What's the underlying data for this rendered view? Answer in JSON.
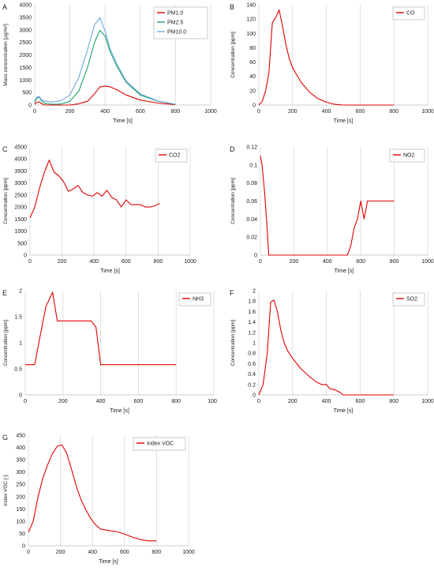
{
  "chart_data": [
    {
      "panel_label": "A",
      "type": "line",
      "xlabel": "Time [s]",
      "ylabel": "Mass concentration [µg/m³]",
      "xlim": [
        0,
        1000
      ],
      "ylim": [
        0,
        4000
      ],
      "xticks": [
        0,
        200,
        400,
        600,
        800,
        1000
      ],
      "yticks": [
        0,
        500,
        1000,
        1500,
        2000,
        2500,
        3000,
        3500,
        4000
      ],
      "grid": "vertical",
      "legend": "top-right",
      "series": [
        {
          "name": "PM1.0",
          "color": "#e30000",
          "x": [
            0,
            10,
            25,
            40,
            60,
            100,
            150,
            200,
            250,
            300,
            340,
            370,
            400,
            430,
            470,
            520,
            600,
            700,
            800
          ],
          "y": [
            30,
            100,
            130,
            50,
            0,
            0,
            0,
            0,
            50,
            150,
            450,
            720,
            760,
            720,
            600,
            400,
            200,
            80,
            20
          ]
        },
        {
          "name": "PM2.5",
          "color": "#1aa36a",
          "x": [
            0,
            10,
            25,
            40,
            60,
            100,
            150,
            200,
            250,
            300,
            340,
            370,
            400,
            430,
            470,
            520,
            600,
            700,
            800
          ],
          "y": [
            100,
            250,
            320,
            150,
            60,
            30,
            40,
            150,
            550,
            1500,
            2500,
            2980,
            2750,
            2100,
            1500,
            900,
            400,
            150,
            30
          ]
        },
        {
          "name": "PM10.0",
          "color": "#6fa8dc",
          "x": [
            0,
            10,
            25,
            40,
            60,
            100,
            150,
            200,
            250,
            300,
            340,
            370,
            400,
            430,
            470,
            520,
            600,
            700,
            800
          ],
          "y": [
            150,
            300,
            350,
            200,
            150,
            120,
            180,
            400,
            1100,
            2200,
            3200,
            3480,
            2950,
            2200,
            1600,
            950,
            450,
            160,
            30
          ]
        }
      ]
    },
    {
      "panel_label": "B",
      "type": "line",
      "xlabel": "Time [s]",
      "ylabel": "Concentration [ppm]",
      "xlim": [
        0,
        1000
      ],
      "ylim": [
        0,
        140
      ],
      "xticks": [
        0,
        200,
        400,
        600,
        800,
        1000
      ],
      "yticks": [
        0,
        20,
        40,
        60,
        80,
        100,
        120,
        140
      ],
      "grid": "vertical",
      "legend": "top-right",
      "series": [
        {
          "name": "CO",
          "color": "#e30000",
          "x": [
            0,
            20,
            40,
            60,
            80,
            100,
            120,
            140,
            160,
            180,
            200,
            250,
            300,
            350,
            400,
            450,
            500,
            600,
            700,
            800
          ],
          "y": [
            0,
            5,
            20,
            45,
            115,
            122,
            133,
            110,
            85,
            65,
            52,
            32,
            18,
            9,
            4,
            1,
            0,
            0,
            0,
            0
          ]
        }
      ]
    },
    {
      "panel_label": "C",
      "type": "line",
      "xlabel": "Time [s]",
      "ylabel": "Concentration [ppm]",
      "xlim": [
        0,
        1000
      ],
      "ylim": [
        0,
        4500
      ],
      "xticks": [
        0,
        200,
        400,
        600,
        800,
        1000
      ],
      "yticks": [
        0,
        500,
        1000,
        1500,
        2000,
        2500,
        3000,
        3500,
        4000,
        4500
      ],
      "grid": "vertical",
      "legend": "top-right",
      "series": [
        {
          "name": "CO2",
          "color": "#e30000",
          "x": [
            0,
            30,
            60,
            90,
            120,
            150,
            180,
            210,
            240,
            270,
            300,
            330,
            360,
            390,
            420,
            450,
            480,
            510,
            540,
            570,
            600,
            630,
            660,
            690,
            720,
            750,
            780,
            810
          ],
          "y": [
            1550,
            2000,
            2800,
            3450,
            3950,
            3450,
            3300,
            3050,
            2650,
            2750,
            2900,
            2600,
            2500,
            2450,
            2600,
            2450,
            2700,
            2400,
            2300,
            2000,
            2300,
            2100,
            2100,
            2100,
            2000,
            2000,
            2050,
            2150
          ]
        }
      ]
    },
    {
      "panel_label": "D",
      "type": "line",
      "xlabel": "Time [s]",
      "ylabel": "Concentration [ppm]",
      "xlim": [
        0,
        1000
      ],
      "ylim": [
        0,
        0.12
      ],
      "xticks": [
        0,
        200,
        400,
        600,
        800,
        1000
      ],
      "yticks": [
        0,
        0.02,
        0.04,
        0.06,
        0.08,
        0.1,
        0.12
      ],
      "grid": "vertical",
      "legend": "top-right",
      "series": [
        {
          "name": "NO2",
          "color": "#e30000",
          "x": [
            0,
            10,
            25,
            40,
            50,
            60,
            100,
            200,
            300,
            400,
            500,
            520,
            540,
            560,
            580,
            600,
            620,
            640,
            660,
            700,
            800
          ],
          "y": [
            0.11,
            0.1,
            0.07,
            0.03,
            0,
            0,
            0,
            0,
            0,
            0,
            0,
            0,
            0.01,
            0.03,
            0.04,
            0.06,
            0.04,
            0.06,
            0.06,
            0.06,
            0.06
          ]
        }
      ]
    },
    {
      "panel_label": "E",
      "type": "line",
      "xlabel": "Time [s]",
      "ylabel": "Concentration [ppm]",
      "xlim": [
        0,
        1000
      ],
      "ylim": [
        0,
        2
      ],
      "xticks": [
        0,
        200,
        400,
        600,
        800,
        1000
      ],
      "yticks": [
        0,
        0.5,
        1,
        1.5,
        2
      ],
      "grid": "vertical",
      "legend": "top-right",
      "series": [
        {
          "name": "NH3",
          "color": "#e30000",
          "x": [
            0,
            50,
            80,
            110,
            145,
            170,
            200,
            250,
            300,
            350,
            375,
            400,
            450,
            500,
            600,
            700,
            800
          ],
          "y": [
            0.58,
            0.58,
            1.15,
            1.7,
            1.97,
            1.42,
            1.42,
            1.42,
            1.42,
            1.42,
            1.3,
            0.58,
            0.58,
            0.58,
            0.58,
            0.58,
            0.58
          ]
        }
      ]
    },
    {
      "panel_label": "F",
      "type": "line",
      "xlabel": "Time [s]",
      "ylabel": "Concentration [ppm]",
      "xlim": [
        0,
        1000
      ],
      "ylim": [
        0,
        2
      ],
      "xticks": [
        0,
        200,
        400,
        600,
        800,
        1000
      ],
      "yticks": [
        0,
        0.2,
        0.4,
        0.6,
        0.8,
        1,
        1.2,
        1.4,
        1.6,
        1.8,
        2
      ],
      "grid": "vertical",
      "legend": "top-right",
      "series": [
        {
          "name": "SO2",
          "color": "#e30000",
          "x": [
            0,
            25,
            50,
            70,
            90,
            110,
            130,
            150,
            170,
            200,
            250,
            300,
            340,
            370,
            400,
            420,
            450,
            480,
            500,
            520,
            600,
            700,
            800
          ],
          "y": [
            0,
            0.2,
            0.8,
            1.78,
            1.82,
            1.6,
            1.25,
            1.0,
            0.85,
            0.7,
            0.5,
            0.35,
            0.25,
            0.2,
            0.2,
            0.12,
            0.1,
            0.05,
            0,
            0,
            0,
            0,
            0
          ]
        }
      ]
    },
    {
      "panel_label": "G",
      "type": "line",
      "xlabel": "Time [s]",
      "ylabel": "Index VOC [-]",
      "xlim": [
        0,
        1000
      ],
      "ylim": [
        0,
        450
      ],
      "xticks": [
        0,
        200,
        400,
        600,
        800,
        1000
      ],
      "yticks": [
        0,
        50,
        100,
        150,
        200,
        250,
        300,
        350,
        400,
        450
      ],
      "grid": "vertical",
      "legend": "top-right",
      "series": [
        {
          "name": "Index VOC",
          "color": "#e30000",
          "x": [
            0,
            30,
            60,
            90,
            120,
            150,
            180,
            210,
            240,
            270,
            300,
            330,
            360,
            390,
            420,
            450,
            500,
            550,
            600,
            650,
            700,
            750,
            800
          ],
          "y": [
            55,
            100,
            200,
            275,
            330,
            375,
            405,
            410,
            375,
            310,
            240,
            185,
            145,
            110,
            85,
            68,
            62,
            58,
            48,
            35,
            25,
            20,
            20
          ]
        }
      ]
    }
  ]
}
